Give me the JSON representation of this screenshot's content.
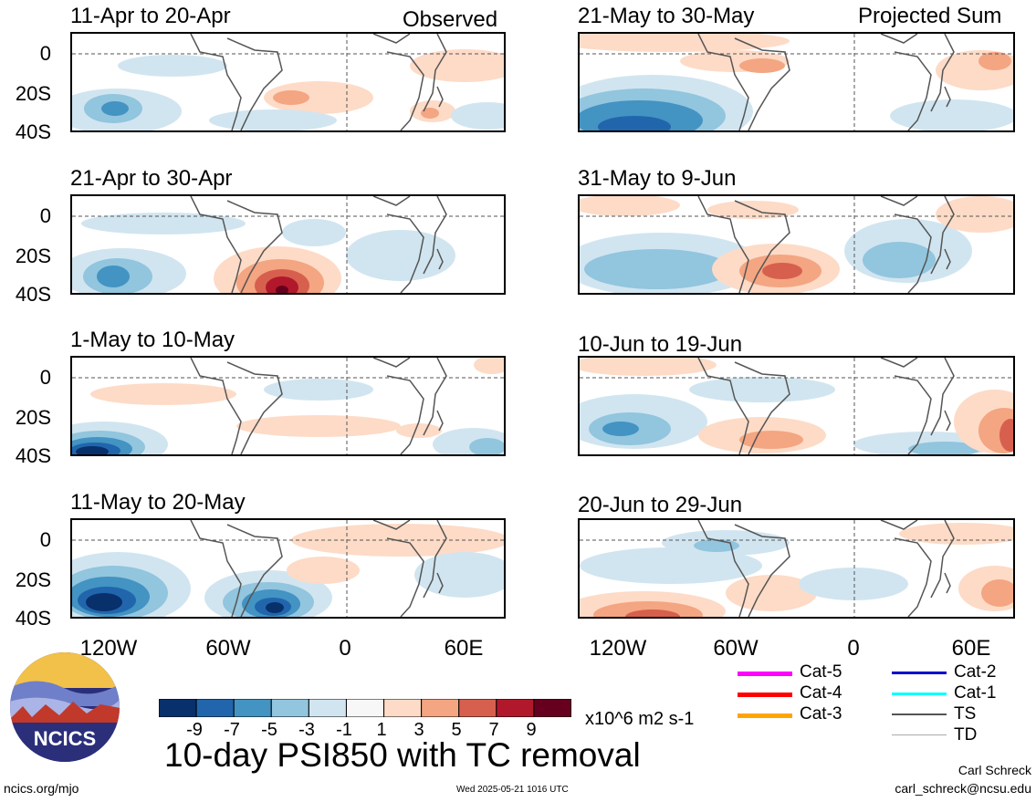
{
  "panels_left": [
    {
      "date": "11-Apr to 20-Apr",
      "tag": "Observed"
    },
    {
      "date": "21-Apr to 30-Apr",
      "tag": ""
    },
    {
      "date": "1-May to 10-May",
      "tag": ""
    },
    {
      "date": "11-May to 20-May",
      "tag": ""
    }
  ],
  "panels_right": [
    {
      "date": "21-May to 30-May",
      "tag": "Projected Sum"
    },
    {
      "date": "31-May to 9-Jun",
      "tag": ""
    },
    {
      "date": "10-Jun to 19-Jun",
      "tag": ""
    },
    {
      "date": "20-Jun to 29-Jun",
      "tag": ""
    }
  ],
  "y_ticks": [
    "0",
    "20S",
    "40S"
  ],
  "x_ticks": [
    "120W",
    "60W",
    "0",
    "60E"
  ],
  "colorbar": {
    "labels": [
      "-9",
      "-7",
      "-5",
      "-3",
      "-1",
      "1",
      "3",
      "5",
      "7",
      "9"
    ],
    "units": "x10^6 m2 s-1",
    "colors": [
      "#08306b",
      "#2166ac",
      "#4393c3",
      "#92c5de",
      "#d1e5f0",
      "#f7f7f7",
      "#fddbc7",
      "#f4a582",
      "#d6604d",
      "#b2182b",
      "#67001f"
    ]
  },
  "main_title": "10-day PSI850 with TC removal",
  "logo_text": "NCICS",
  "footer": {
    "left": "ncics.org/mjo",
    "center": "Wed 2025-05-21 1016 UTC",
    "author": "Carl Schreck",
    "email": "carl_schreck@ncsu.edu"
  },
  "tc_legend": [
    {
      "label": "Cat-5",
      "color": "#ff00ff"
    },
    {
      "label": "Cat-4",
      "color": "#ff0000"
    },
    {
      "label": "Cat-3",
      "color": "#ffa500"
    },
    {
      "label": "Cat-2",
      "color": "#0000cd"
    },
    {
      "label": "Cat-1",
      "color": "#00ffff"
    },
    {
      "label": "TS",
      "color": "#555555"
    },
    {
      "label": "TD",
      "color": "#aaaaaa"
    }
  ]
}
